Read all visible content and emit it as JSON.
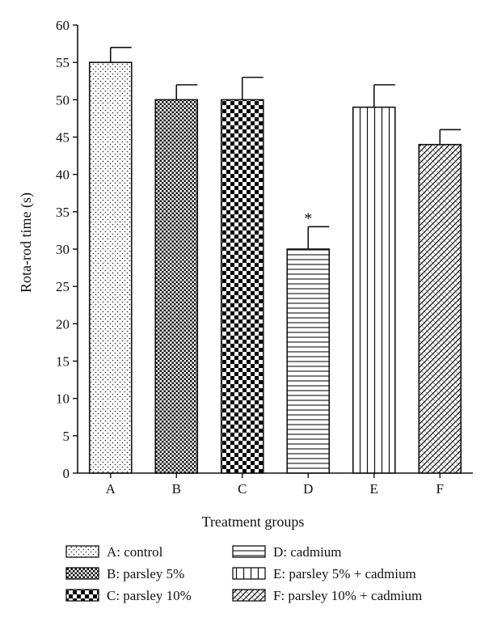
{
  "chart_data": {
    "type": "bar",
    "title": "",
    "xlabel": "Treatment groups",
    "ylabel": "Rota-rod time (s)",
    "ylim": [
      0,
      60
    ],
    "yticks": [
      0,
      5,
      10,
      15,
      20,
      25,
      30,
      35,
      40,
      45,
      50,
      55,
      60
    ],
    "categories": [
      "A",
      "B",
      "C",
      "D",
      "E",
      "F"
    ],
    "values": [
      55,
      50,
      50,
      30,
      49,
      44
    ],
    "errors": [
      2,
      2,
      3,
      3,
      3,
      2
    ],
    "patterns": [
      "dots",
      "fine-checker",
      "checker",
      "horizontal-lines",
      "vertical-lines",
      "diagonal-hatch"
    ],
    "annotations": [
      {
        "category": "D",
        "text": "*"
      }
    ],
    "legend": [
      "A: control",
      "B: parsley 5%",
      "C: parsley 10%",
      "D: cadmium",
      "E: parsley 5% + cadmium",
      "F: parsley 10% + cadmium"
    ],
    "legend_position": "bottom",
    "grid": false
  }
}
